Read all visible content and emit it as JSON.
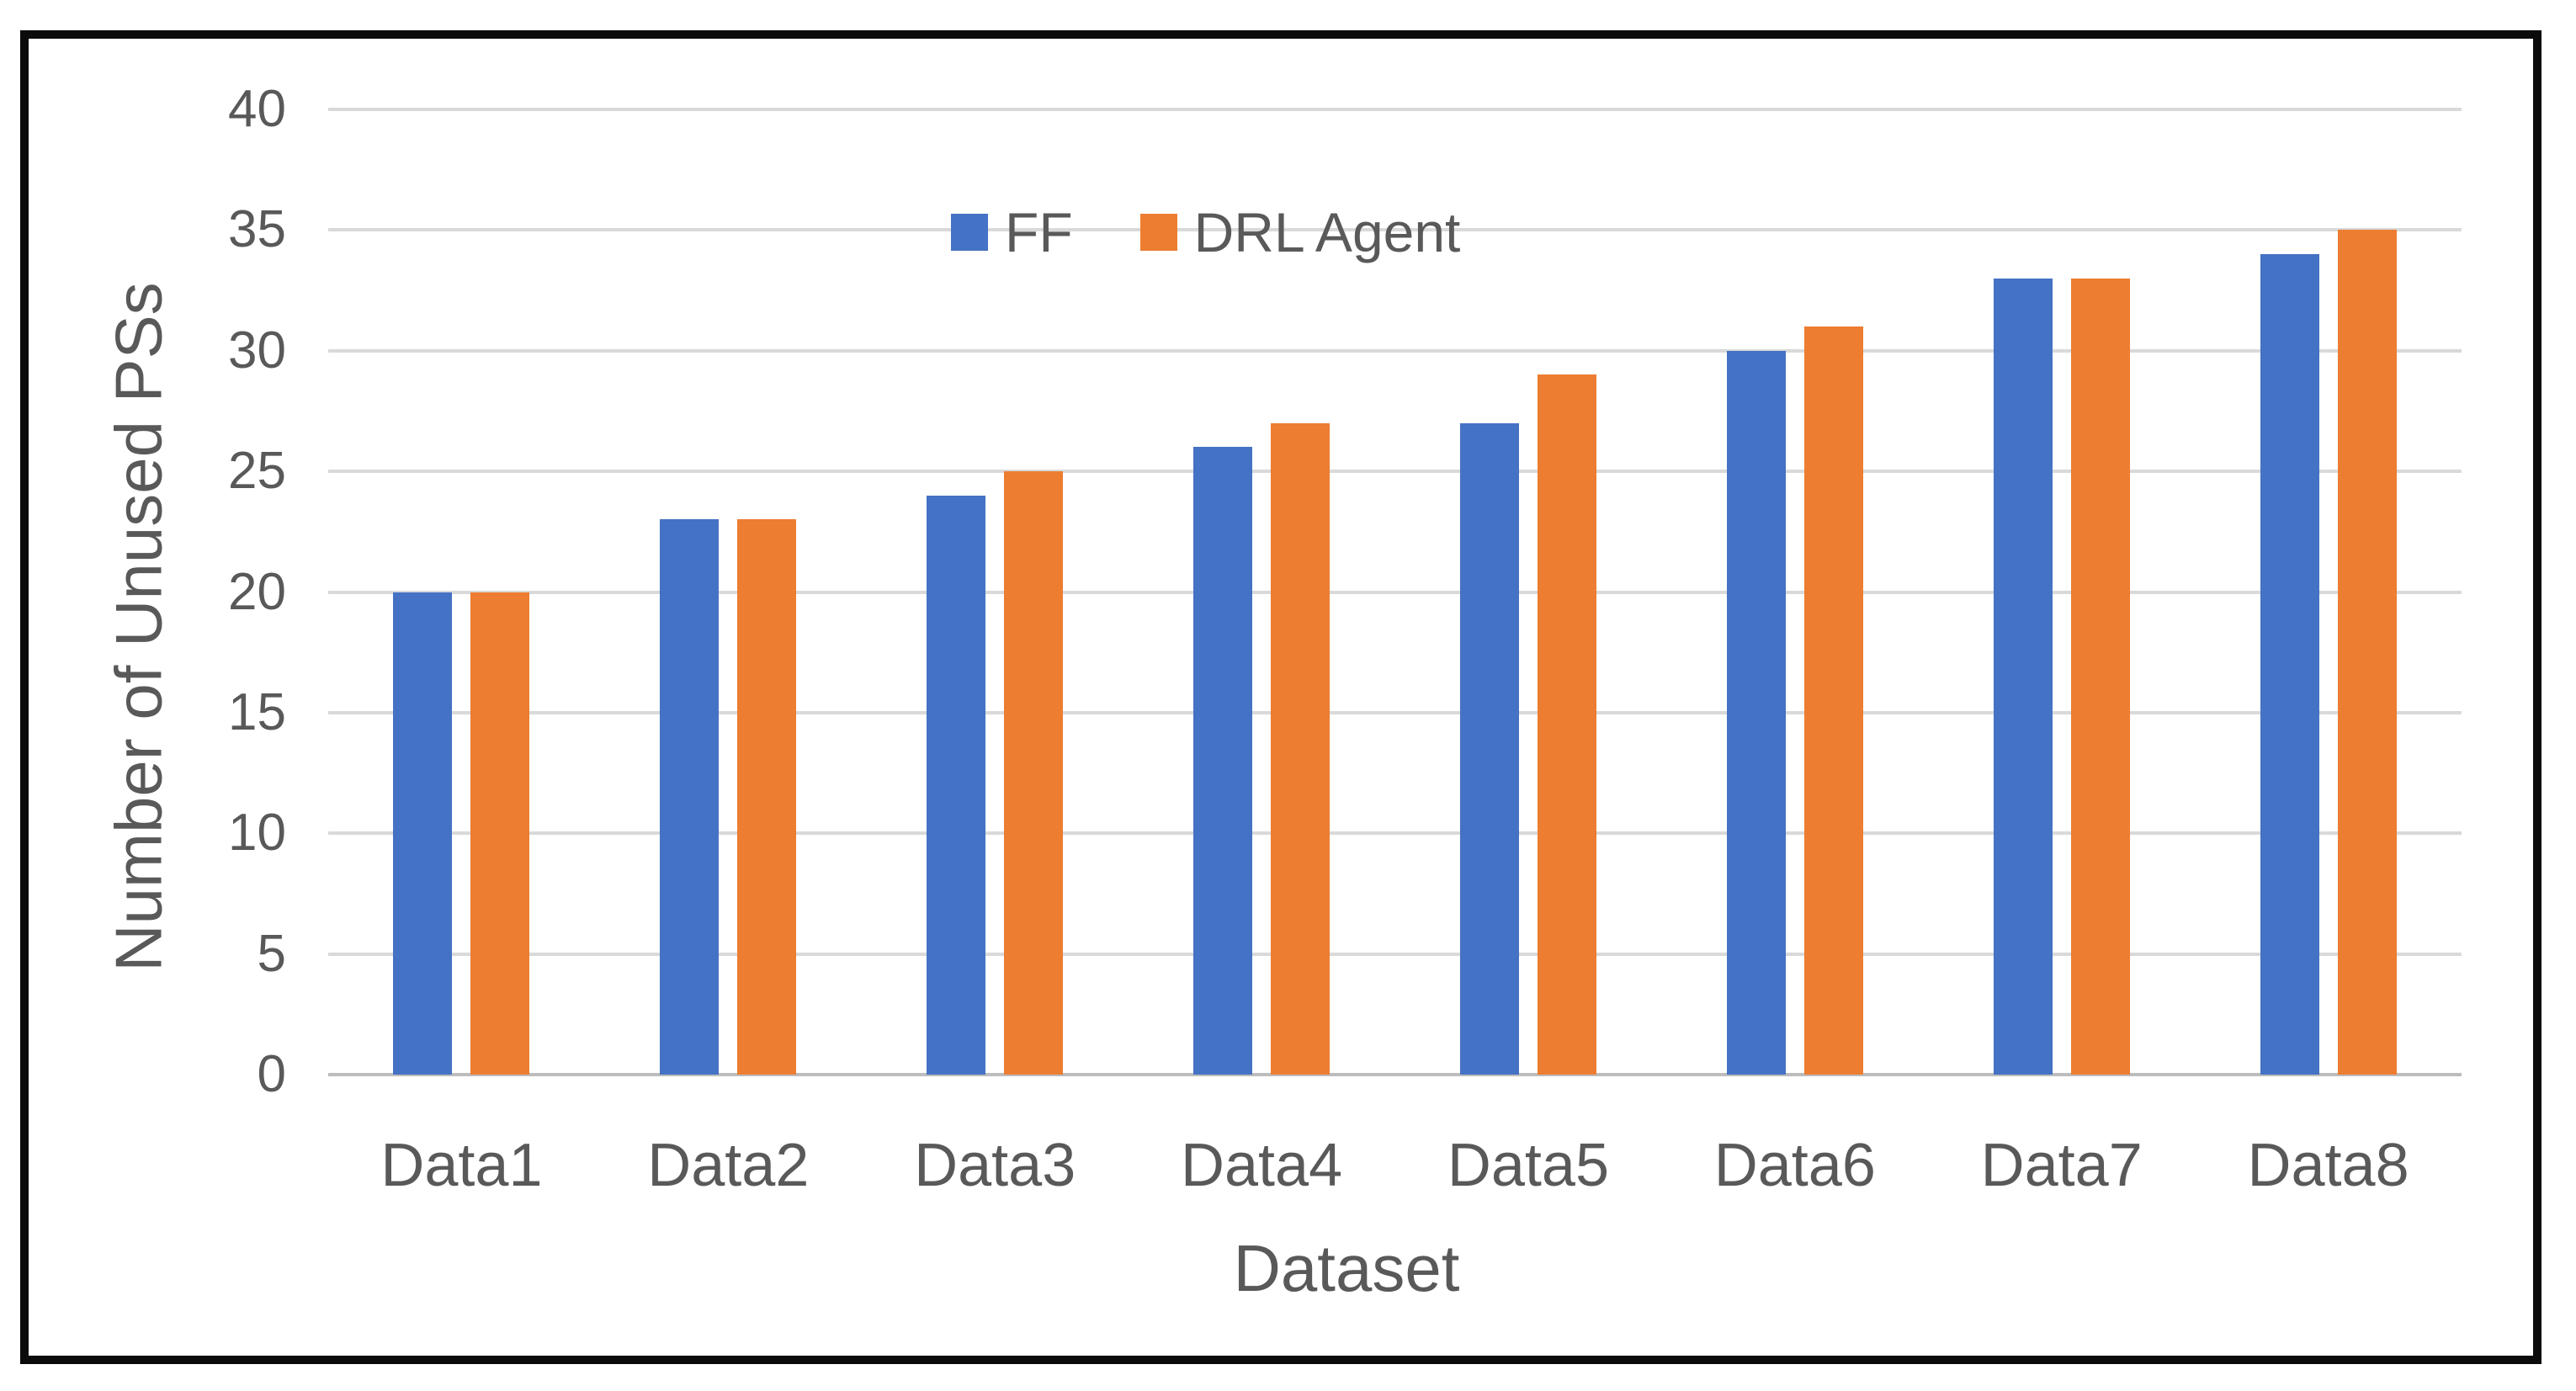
{
  "figure": {
    "background": "#ffffff",
    "border_color": "#0b0b0b"
  },
  "chart_data": {
    "type": "bar",
    "title": "",
    "categories": [
      "Data1",
      "Data2",
      "Data3",
      "Data4",
      "Data5",
      "Data6",
      "Data7",
      "Data8"
    ],
    "series": [
      {
        "name": "FF",
        "color": "#4472C4",
        "values": [
          20,
          23,
          24,
          26,
          27,
          30,
          33,
          34
        ]
      },
      {
        "name": "DRL Agent",
        "color": "#ED7D31",
        "values": [
          20,
          23,
          25,
          27,
          29,
          31,
          33,
          35
        ]
      }
    ],
    "xlabel": "Dataset",
    "ylabel": "Number of Unused PSs",
    "ylim": [
      0,
      40
    ],
    "yticks": [
      0,
      5,
      10,
      15,
      20,
      25,
      30,
      35,
      40
    ],
    "grid": "horizontal",
    "gridline_color": "#d9d9d9",
    "legend_position": "top-center",
    "legend_entries": [
      "FF",
      "DRL Agent"
    ]
  }
}
